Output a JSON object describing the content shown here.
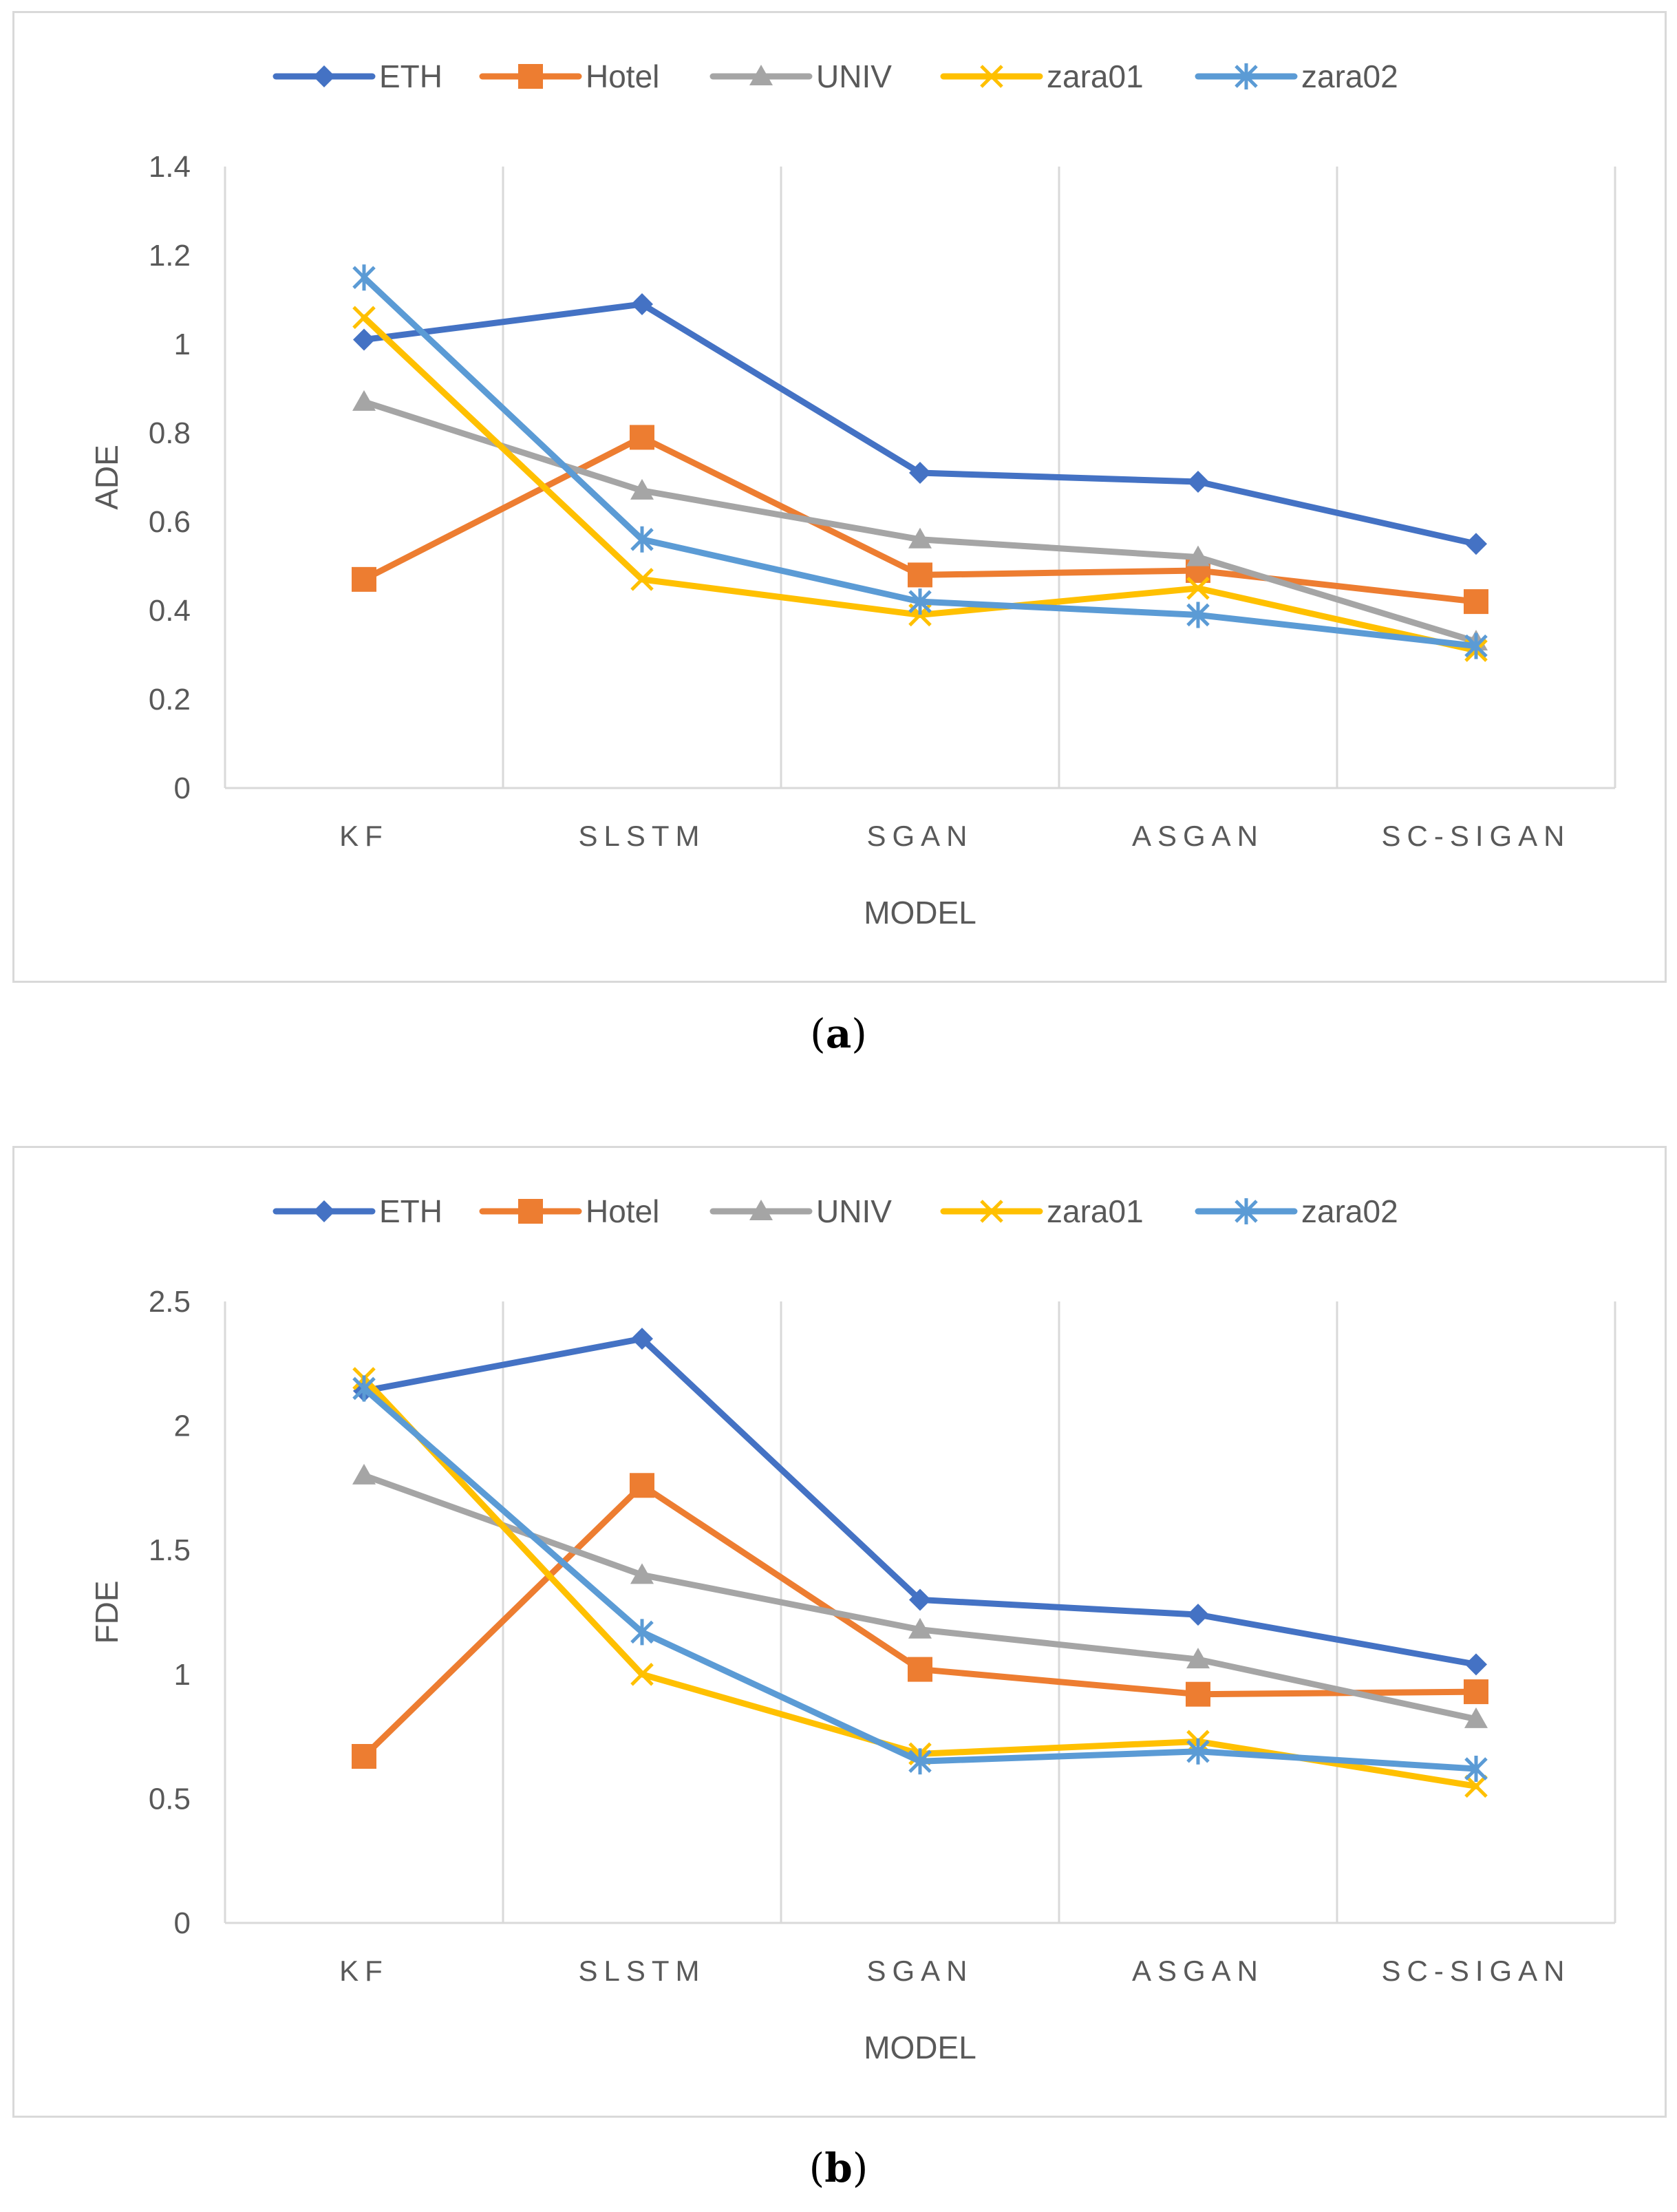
{
  "captions": {
    "a": "a",
    "b": "b"
  },
  "colors": {
    "ETH": "#4472c4",
    "Hotel": "#ed7d31",
    "UNIV": "#a5a5a5",
    "zara01": "#ffc000",
    "zara02": "#5b9bd5",
    "grid": "#d9d9d9",
    "text": "#595959"
  },
  "chart_data": [
    {
      "type": "line",
      "ylabel": "ADE",
      "xlabel": "MODEL",
      "categories": [
        "KF",
        "SLSTM",
        "SGAN",
        "ASGAN",
        "SC-SIGAN"
      ],
      "ylim": [
        0,
        1.4
      ],
      "yticks": [
        0,
        0.2,
        0.4,
        0.6,
        0.8,
        1,
        1.2,
        1.4
      ],
      "legend_position": "top",
      "series": [
        {
          "name": "ETH",
          "marker": "diamond",
          "values": [
            1.01,
            1.09,
            0.71,
            0.69,
            0.55
          ]
        },
        {
          "name": "Hotel",
          "marker": "square",
          "values": [
            0.47,
            0.79,
            0.48,
            0.49,
            0.42
          ]
        },
        {
          "name": "UNIV",
          "marker": "triangle",
          "values": [
            0.87,
            0.67,
            0.56,
            0.52,
            0.33
          ]
        },
        {
          "name": "zara01",
          "marker": "x",
          "values": [
            1.06,
            0.47,
            0.39,
            0.45,
            0.31
          ]
        },
        {
          "name": "zara02",
          "marker": "star",
          "values": [
            1.15,
            0.56,
            0.42,
            0.39,
            0.32
          ]
        }
      ]
    },
    {
      "type": "line",
      "ylabel": "FDE",
      "xlabel": "MODEL",
      "categories": [
        "KF",
        "SLSTM",
        "SGAN",
        "ASGAN",
        "SC-SIGAN"
      ],
      "ylim": [
        0,
        2.5
      ],
      "yticks": [
        0,
        0.5,
        1,
        1.5,
        2,
        2.5
      ],
      "legend_position": "top",
      "series": [
        {
          "name": "ETH",
          "marker": "diamond",
          "values": [
            2.14,
            2.35,
            1.3,
            1.24,
            1.04
          ]
        },
        {
          "name": "Hotel",
          "marker": "square",
          "values": [
            0.67,
            1.76,
            1.02,
            0.92,
            0.93
          ]
        },
        {
          "name": "UNIV",
          "marker": "triangle",
          "values": [
            1.8,
            1.4,
            1.18,
            1.06,
            0.82
          ]
        },
        {
          "name": "zara01",
          "marker": "x",
          "values": [
            2.19,
            1.0,
            0.68,
            0.73,
            0.55
          ]
        },
        {
          "name": "zara02",
          "marker": "star",
          "values": [
            2.15,
            1.17,
            0.65,
            0.69,
            0.62
          ]
        }
      ]
    }
  ]
}
